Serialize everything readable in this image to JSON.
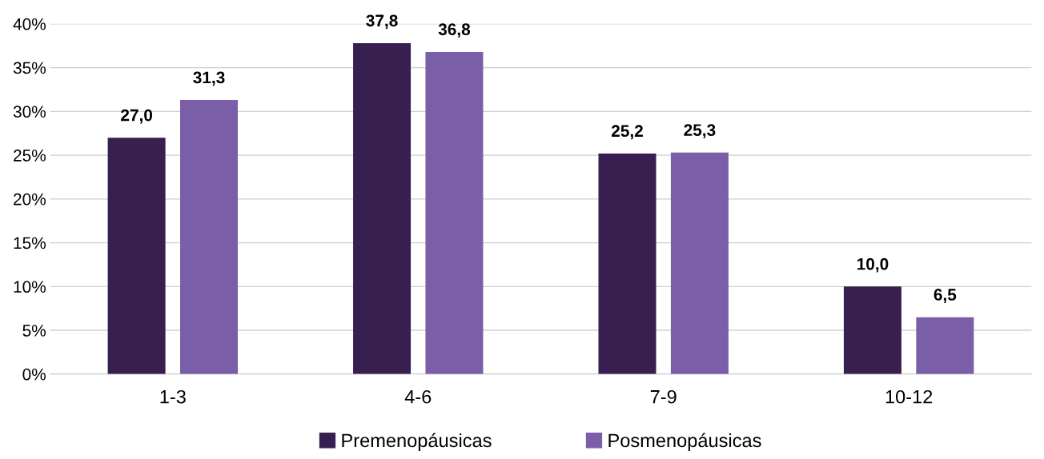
{
  "chart_data": {
    "type": "bar",
    "categories": [
      "1-3",
      "4-6",
      "7-9",
      "10-12"
    ],
    "series": [
      {
        "name": "Premenopáusicas",
        "color": "#37204f",
        "values": [
          27.0,
          37.8,
          25.2,
          10.0
        ],
        "value_labels": [
          "27,0",
          "37,8",
          "25,2",
          "10,0"
        ]
      },
      {
        "name": "Posmenopáusicas",
        "color": "#7a5fa8",
        "values": [
          31.3,
          36.8,
          25.3,
          6.5
        ],
        "value_labels": [
          "31,3",
          "36,8",
          "25,3",
          "6,5"
        ]
      }
    ],
    "ylim": [
      0,
      40
    ],
    "yticks": [
      {
        "value": 0,
        "label": "0%"
      },
      {
        "value": 5,
        "label": "5%"
      },
      {
        "value": 10,
        "label": "10%"
      },
      {
        "value": 15,
        "label": "15%"
      },
      {
        "value": 20,
        "label": "20%"
      },
      {
        "value": 25,
        "label": "25%"
      },
      {
        "value": 30,
        "label": "30%"
      },
      {
        "value": 35,
        "label": "35%"
      },
      {
        "value": 40,
        "label": "40%"
      }
    ],
    "grid": "y",
    "legend": "bottom"
  }
}
